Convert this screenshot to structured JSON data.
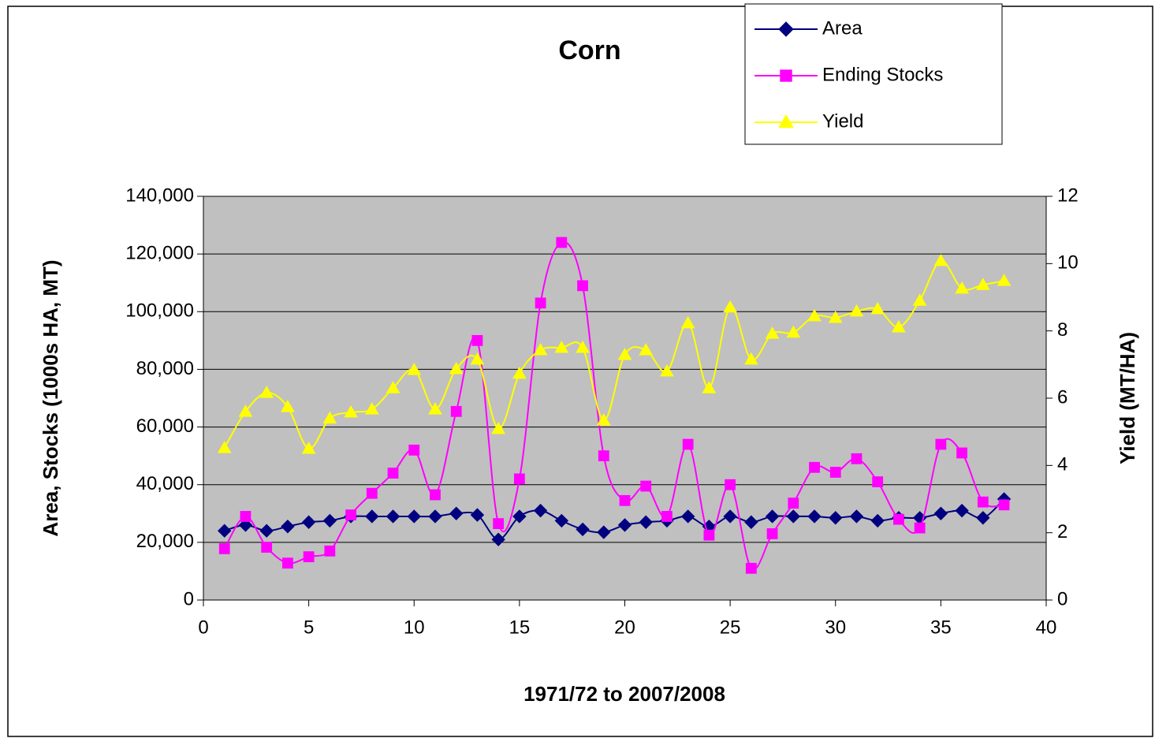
{
  "chart_data": {
    "type": "line",
    "title": "Corn",
    "xlabel": "1971/72 to 2007/2008",
    "ylabel": "Area, Stocks (1000s HA, MT)",
    "y2label": "Yield (MT/HA)",
    "x": [
      1,
      2,
      3,
      4,
      5,
      6,
      7,
      8,
      9,
      10,
      11,
      12,
      13,
      14,
      15,
      16,
      17,
      18,
      19,
      20,
      21,
      22,
      23,
      24,
      25,
      26,
      27,
      28,
      29,
      30,
      31,
      32,
      33,
      34,
      35,
      36,
      37,
      38
    ],
    "series": [
      {
        "name": "Area",
        "color": "#000080",
        "marker": "diamond",
        "values": [
          24000,
          26000,
          24000,
          25500,
          27000,
          27500,
          29000,
          29000,
          29000,
          29000,
          29000,
          30000,
          29500,
          21000,
          29000,
          31000,
          27500,
          24500,
          23500,
          26000,
          27000,
          27500,
          29000,
          25500,
          29000,
          27000,
          29000,
          29000,
          29000,
          28500,
          29000,
          27500,
          28500,
          28500,
          30000,
          31000,
          28500,
          35000
        ]
      },
      {
        "name": "Ending Stocks",
        "color": "#FF00FF",
        "marker": "square",
        "values": [
          17800,
          29000,
          18300,
          12800,
          15000,
          17000,
          29500,
          37000,
          44000,
          52000,
          36500,
          65400,
          90000,
          26500,
          42000,
          103000,
          124000,
          109000,
          50000,
          34500,
          39500,
          29000,
          54000,
          22500,
          40000,
          11000,
          23000,
          33600,
          46000,
          44300,
          49000,
          41000,
          28000,
          25000,
          54000,
          51000,
          34000,
          33000
        ]
      },
      {
        "name": "Yield",
        "color": "#FFFF00",
        "marker": "triangle",
        "axis": "y2",
        "values": [
          4.52,
          5.6,
          6.16,
          5.74,
          4.5,
          5.4,
          5.58,
          5.67,
          6.3,
          6.84,
          5.67,
          6.87,
          7.15,
          5.09,
          6.73,
          7.43,
          7.5,
          7.5,
          5.34,
          7.29,
          7.43,
          6.8,
          8.23,
          6.3,
          8.7,
          7.15,
          7.92,
          7.95,
          8.44,
          8.39,
          8.58,
          8.65,
          8.11,
          8.9,
          10.08,
          9.26,
          9.37,
          9.49
        ]
      }
    ],
    "xlim": [
      0,
      40
    ],
    "xticks": [
      0,
      5,
      10,
      15,
      20,
      25,
      30,
      35,
      40
    ],
    "ylim": [
      0,
      140000
    ],
    "yticks": [
      0,
      {
        "value": 20000,
        "label": "20,000"
      },
      {
        "value": 40000,
        "label": "40,000"
      },
      {
        "value": 60000,
        "label": "60,000"
      },
      {
        "value": 80000,
        "label": "80,000"
      },
      {
        "value": 100000,
        "label": "100,000"
      },
      {
        "value": 120000,
        "label": "120,000"
      },
      {
        "value": 140000,
        "label": "140,000"
      }
    ],
    "y2lim": [
      0,
      12
    ],
    "y2ticks": [
      0,
      2,
      4,
      6,
      8,
      10,
      12
    ],
    "grid": true,
    "legend": "upper right",
    "background": "#C0C0C0"
  }
}
